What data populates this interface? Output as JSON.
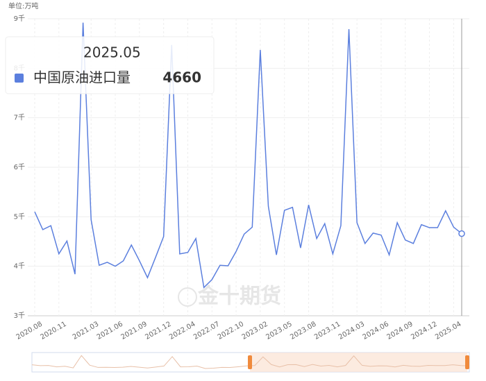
{
  "chart_data": {
    "type": "line",
    "y_axis_label": "单位:万吨",
    "watermark": "金十期货",
    "categories": [
      "2020.08",
      null,
      null,
      "2020.11",
      null,
      null,
      null,
      "2021.03",
      null,
      null,
      "2021.06",
      null,
      null,
      "2021.09",
      null,
      null,
      "2021.12",
      null,
      null,
      "2022.04",
      null,
      null,
      "2022.07",
      null,
      null,
      "2022.10",
      null,
      null,
      "2023.02",
      null,
      null,
      "2023.05",
      null,
      null,
      "2023.08",
      null,
      null,
      "2023.11",
      null,
      null,
      "2024.03",
      null,
      null,
      "2024.06",
      null,
      null,
      "2024.09",
      null,
      null,
      "2024.12",
      null,
      null,
      "2025.04",
      null
    ],
    "series": [
      {
        "name": "中国原油进口量",
        "color": "#5b7fde",
        "values": [
          5100,
          4740,
          4820,
          4250,
          4510,
          3840,
          8920,
          4940,
          4020,
          4080,
          4000,
          4110,
          4430,
          4110,
          3770,
          4180,
          4600,
          8470,
          4250,
          4280,
          4560,
          3570,
          3730,
          4020,
          4010,
          4300,
          4650,
          4790,
          8370,
          5210,
          4230,
          5130,
          5190,
          4370,
          5240,
          4560,
          4860,
          4250,
          4820,
          8790,
          4880,
          4460,
          4670,
          4630,
          4230,
          4880,
          4530,
          4460,
          4840,
          4780,
          4780,
          5120,
          4790,
          4660
        ]
      }
    ],
    "ylim": [
      3000,
      9000
    ],
    "yticks": [
      {
        "value": 3000,
        "label": "3千"
      },
      {
        "value": 4000,
        "label": "4千"
      },
      {
        "value": 5000,
        "label": "5千"
      },
      {
        "value": 6000,
        "label": "6千"
      },
      {
        "value": 7000,
        "label": "7千"
      },
      {
        "value": 8000,
        "label": "8千"
      },
      {
        "value": 9000,
        "label": "9千"
      }
    ],
    "grid": true,
    "tooltip": {
      "title": "2025.05"
    }
  }
}
